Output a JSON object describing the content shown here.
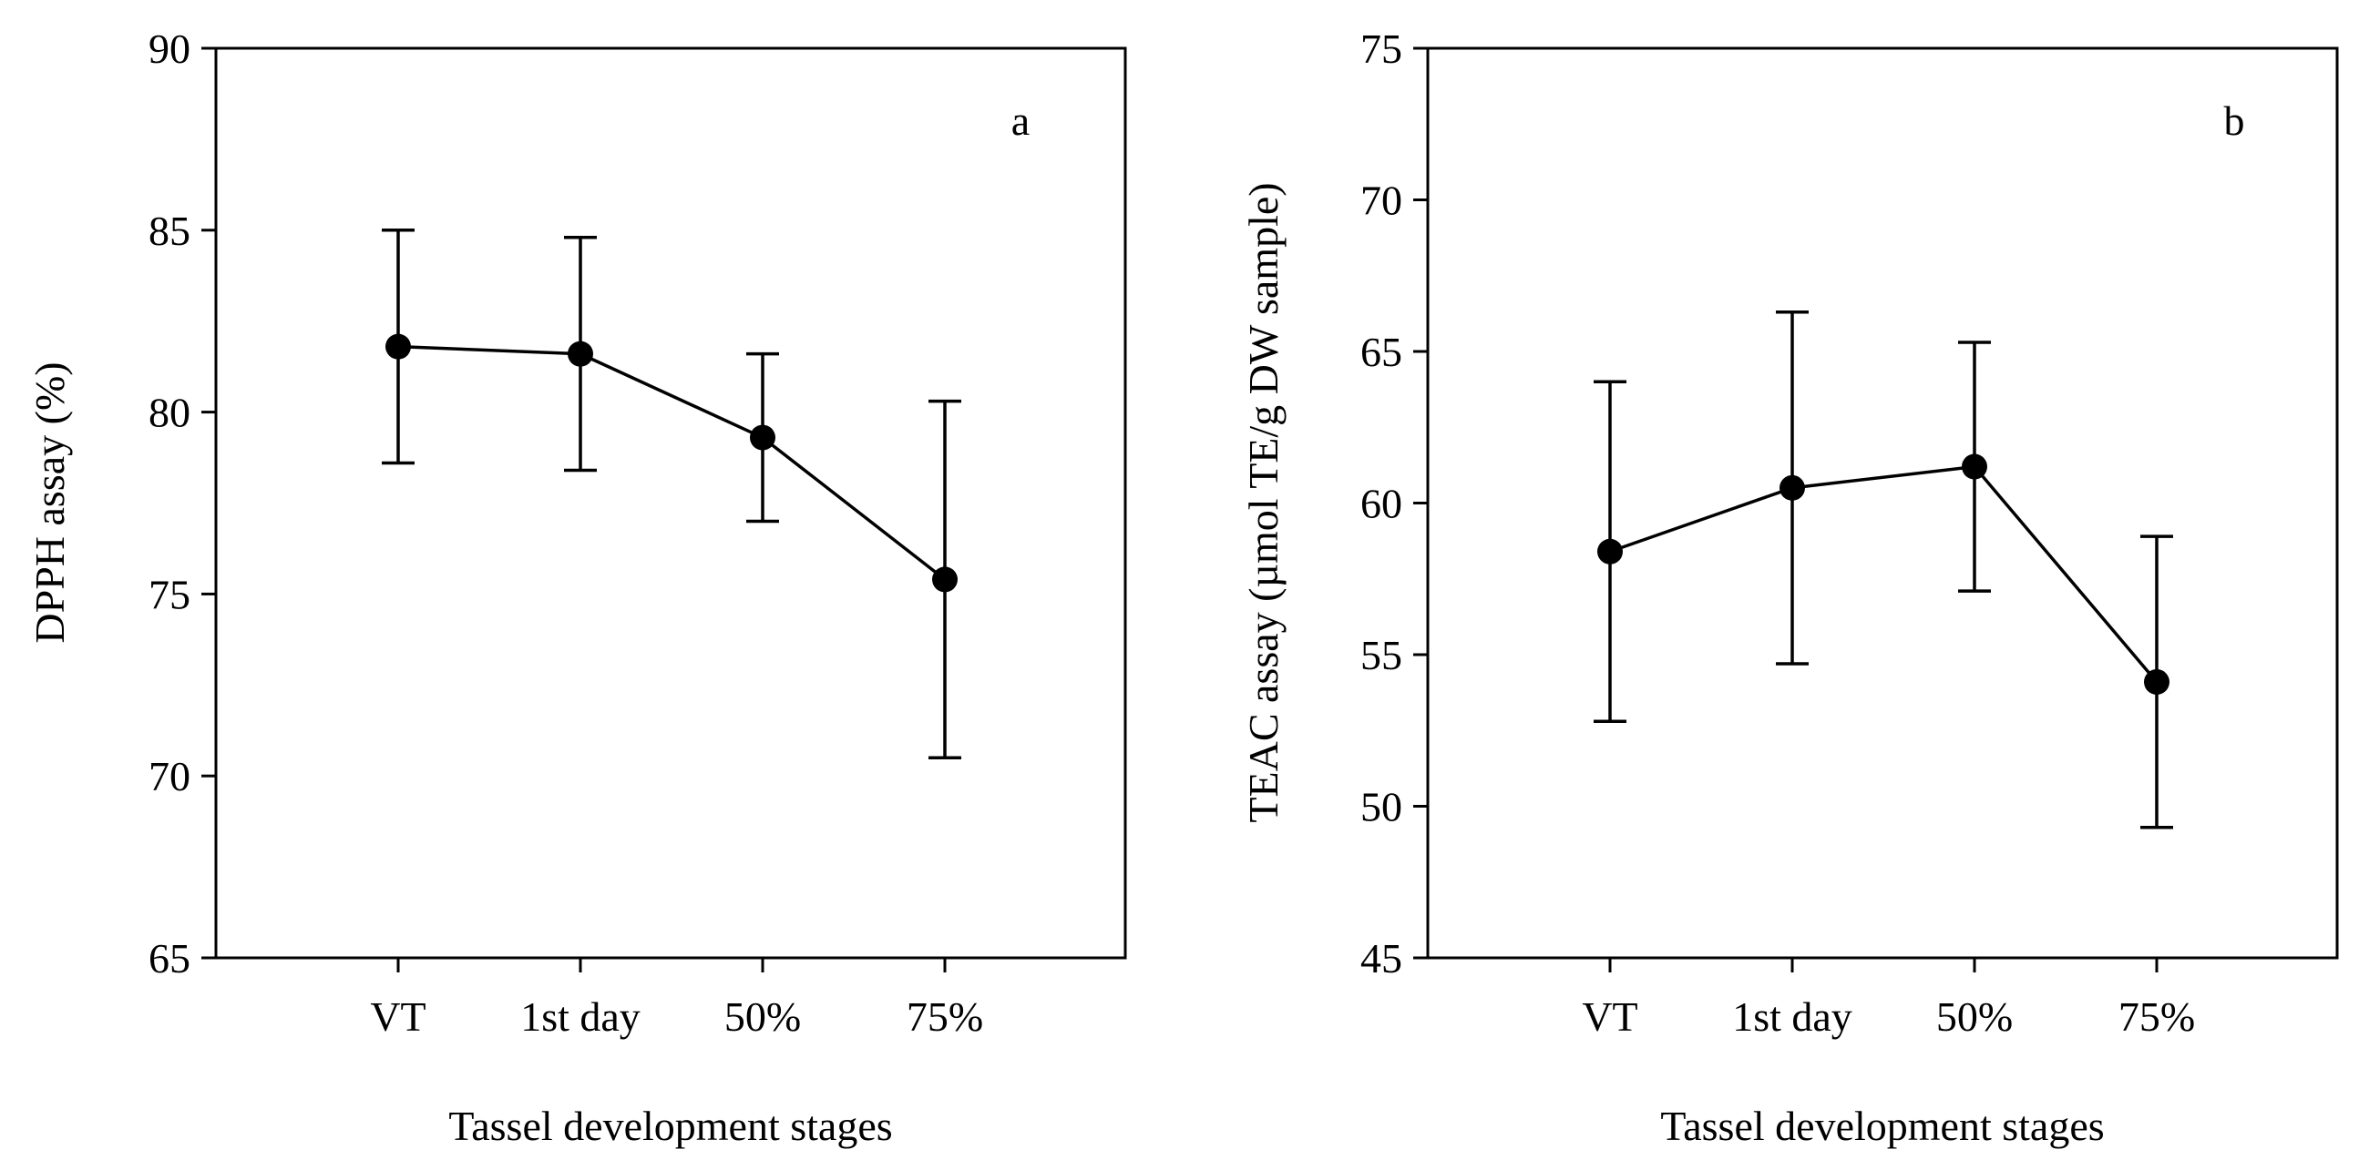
{
  "chart_data": [
    {
      "type": "line",
      "panel_label": "a",
      "categories": [
        "VT",
        "1st day",
        "50%",
        "75%"
      ],
      "series": [
        {
          "name": "DPPH",
          "values": [
            81.8,
            81.6,
            79.3,
            75.4
          ],
          "error_low": [
            78.6,
            78.4,
            77.0,
            70.5
          ],
          "error_high": [
            85.0,
            84.8,
            81.6,
            80.3
          ]
        }
      ],
      "xlabel": "Tassel development stages",
      "ylabel": "DPPH assay (%)",
      "ylim": [
        65,
        90
      ],
      "yticks": [
        65,
        70,
        75,
        80,
        85,
        90
      ],
      "yticklabels": [
        "65",
        "70",
        "75",
        "80",
        "85",
        "90"
      ]
    },
    {
      "type": "line",
      "panel_label": "b",
      "categories": [
        "VT",
        "1st day",
        "50%",
        "75%"
      ],
      "series": [
        {
          "name": "TEAC",
          "values": [
            58.4,
            60.5,
            61.2,
            54.1
          ],
          "error_low": [
            52.8,
            54.7,
            57.1,
            49.3
          ],
          "error_high": [
            64.0,
            66.3,
            65.3,
            58.9
          ]
        }
      ],
      "xlabel": "Tassel development stages",
      "ylabel": "TEAC assay (µmol TE/g DW sample)",
      "ylim": [
        45,
        75
      ],
      "yticks": [
        45,
        50,
        55,
        60,
        65,
        70,
        75
      ],
      "yticklabels": [
        "45",
        "50",
        "55",
        "60",
        "65",
        "70",
        "75"
      ]
    }
  ]
}
